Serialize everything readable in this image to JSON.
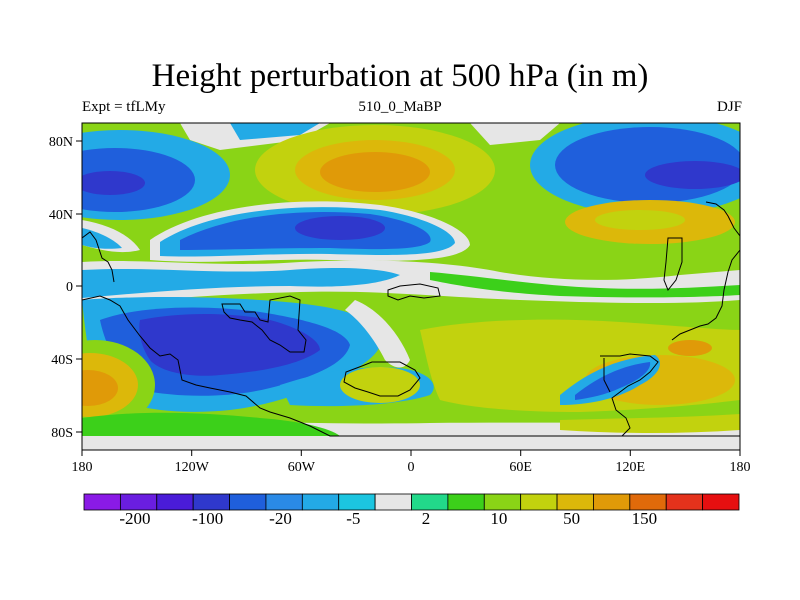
{
  "title": "Height perturbation at 500 hPa (in m)",
  "subtitle": {
    "left": "Expt = tfLMy",
    "center": "510_0_MaBP",
    "right": "DJF"
  },
  "x_ticks": [
    "180",
    "120W",
    "60W",
    "0",
    "60E",
    "120E",
    "180"
  ],
  "y_ticks": [
    "80N",
    "40N",
    "0",
    "40S",
    "80S"
  ],
  "colorbar": {
    "labels": [
      "-200",
      "-100",
      "-20",
      "-5",
      "2",
      "10",
      "50",
      "150"
    ],
    "colors": [
      "#8a1ae6",
      "#6a1ee0",
      "#4a1cd8",
      "#2f38cc",
      "#1f5fdc",
      "#2a8ae6",
      "#23aae6",
      "#1cc5e0",
      "#e6e6e6",
      "#22d98a",
      "#3cd01a",
      "#8ad416",
      "#c2d20e",
      "#dcb80a",
      "#e09a08",
      "#e06a0a",
      "#e4321c",
      "#e60f10"
    ]
  }
}
